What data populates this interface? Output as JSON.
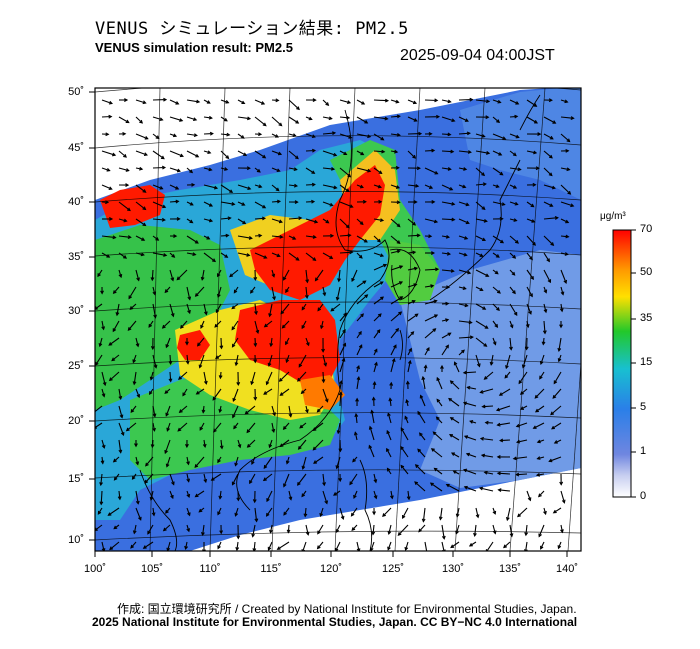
{
  "header": {
    "title_jp": "VENUS シミュレーション結果: PM2.5",
    "title_en": "VENUS simulation result: PM2.5",
    "timestamp": "2025-09-04 04:00JST"
  },
  "map": {
    "lon_range": [
      100,
      142
    ],
    "lat_range": [
      9,
      51
    ],
    "lat_ticks": [
      "50˚",
      "45˚",
      "40˚",
      "35˚",
      "30˚",
      "25˚",
      "20˚",
      "15˚",
      "10˚"
    ],
    "lon_ticks": [
      "100˚",
      "105˚",
      "110˚",
      "115˚",
      "120˚",
      "125˚",
      "130˚",
      "135˚",
      "140˚"
    ],
    "ocean_color": "#3a6fe0",
    "land_color": "#2aa7d8",
    "high_color": "#ff1a00"
  },
  "colorbar": {
    "unit": "μg/m³",
    "levels": [
      "70",
      "50",
      "35",
      "15",
      "5",
      "1",
      "0"
    ],
    "colors": [
      "#ff0000",
      "#ff7a00",
      "#ffe000",
      "#22c82a",
      "#18c8c8",
      "#2a7fe8",
      "#8a9ce8",
      "#ffffff"
    ]
  },
  "footer": {
    "credit": "作成: 国立環境研究所 / Created by National Institute for Environmental Studies, Japan.",
    "license": "2025 National Institute for Environmental Studies, Japan. CC BY−NC 4.0 International"
  }
}
